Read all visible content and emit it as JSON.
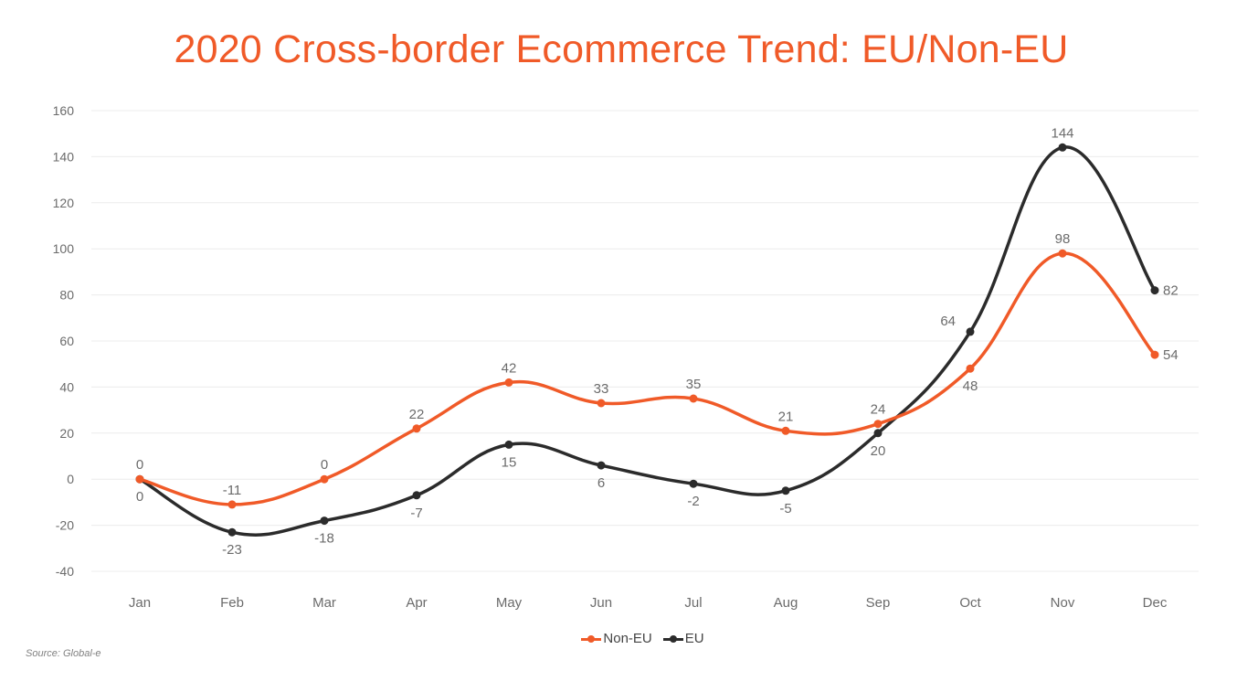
{
  "chart_data": {
    "type": "line",
    "title": "2020 Cross-border Ecommerce Trend: EU/Non-EU",
    "xlabel": "",
    "ylabel": "",
    "categories": [
      "Jan",
      "Feb",
      "Mar",
      "Apr",
      "May",
      "Jun",
      "Jul",
      "Aug",
      "Sep",
      "Oct",
      "Nov",
      "Dec"
    ],
    "ylim": [
      -40,
      160
    ],
    "yticks": [
      -40,
      -20,
      0,
      20,
      40,
      60,
      80,
      100,
      120,
      140,
      160
    ],
    "ytick_labels": [
      "-40",
      "-20",
      "0",
      "20",
      "40",
      "60",
      "80",
      "100",
      "120",
      "140",
      "160"
    ],
    "grid": true,
    "legend_position": "bottom-center",
    "series": [
      {
        "name": "Non-EU",
        "color": "#f05a28",
        "values": [
          0,
          -11,
          0,
          22,
          42,
          33,
          35,
          21,
          24,
          48,
          98,
          54
        ],
        "label_placement": [
          "above",
          "above",
          "above",
          "above",
          "above",
          "above",
          "above",
          "above",
          "above",
          "below",
          "above",
          "right"
        ]
      },
      {
        "name": "EU",
        "color": "#2b2b2b",
        "values": [
          0,
          -23,
          -18,
          -7,
          15,
          6,
          -2,
          -5,
          20,
          64,
          144,
          82
        ],
        "label_placement": [
          "below",
          "below",
          "below",
          "below",
          "below",
          "below",
          "below",
          "below",
          "below",
          "above-left",
          "above",
          "right"
        ]
      }
    ]
  },
  "source": "Source: Global-e",
  "title_color": "#f05a28"
}
